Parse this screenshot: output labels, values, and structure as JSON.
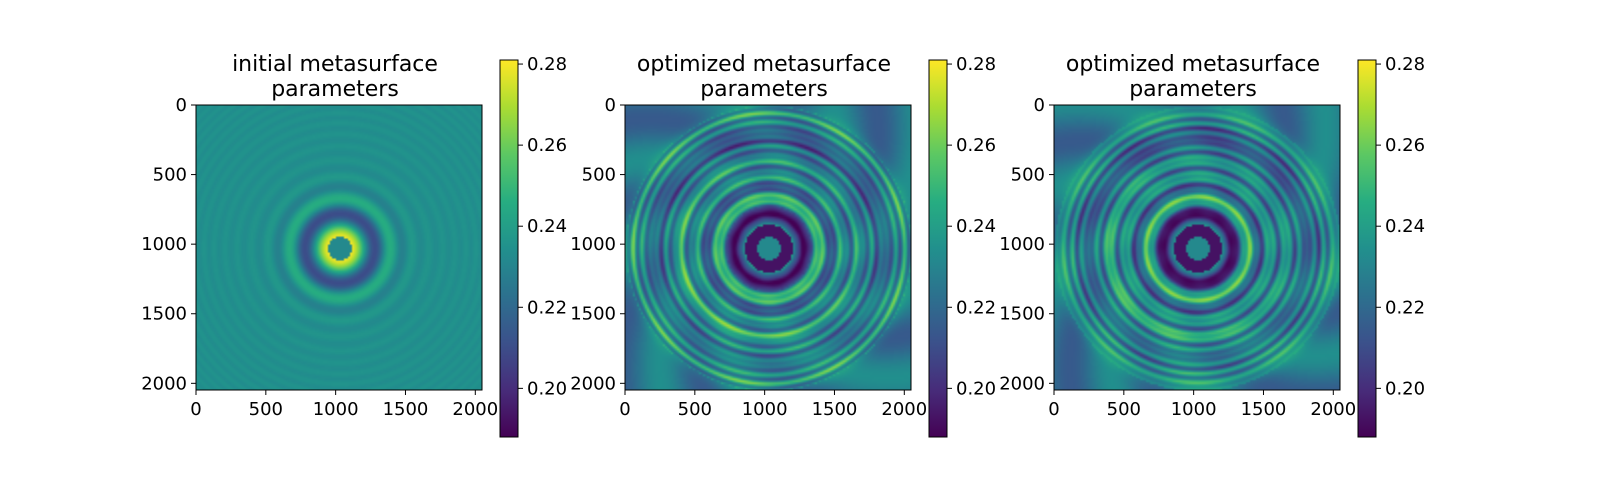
{
  "chart_data": [
    {
      "type": "heatmap",
      "title": "initial metasurface\nparameters",
      "state": "initial",
      "xlim": [
        0,
        2048
      ],
      "ylim": [
        2048,
        0
      ],
      "xticks": [
        0,
        500,
        1000,
        1500,
        2000
      ],
      "yticks": [
        0,
        500,
        1000,
        1500,
        2000
      ],
      "colorbar": {
        "vmin": 0.188,
        "vmax": 0.281,
        "ticks": [
          0.2,
          0.22,
          0.24,
          0.26,
          0.28
        ],
        "colormap": "viridis"
      }
    },
    {
      "type": "heatmap",
      "title": "optimized metasurface\nparameters",
      "state": "optimized",
      "xlim": [
        0,
        2048
      ],
      "ylim": [
        2048,
        0
      ],
      "xticks": [
        0,
        500,
        1000,
        1500,
        2000
      ],
      "yticks": [
        0,
        500,
        1000,
        1500,
        2000
      ],
      "colorbar": {
        "vmin": 0.188,
        "vmax": 0.281,
        "ticks": [
          0.2,
          0.22,
          0.24,
          0.26,
          0.28
        ],
        "colormap": "viridis"
      }
    },
    {
      "type": "heatmap",
      "title": "optimized metasurface\nparameters",
      "state": "optimized",
      "xlim": [
        0,
        2048
      ],
      "ylim": [
        2048,
        0
      ],
      "xticks": [
        0,
        500,
        1000,
        1500,
        2000
      ],
      "yticks": [
        0,
        500,
        1000,
        1500,
        2000
      ],
      "colorbar": {
        "vmin": 0.188,
        "vmax": 0.281,
        "ticks": [
          0.2,
          0.22,
          0.24,
          0.26,
          0.28
        ],
        "colormap": "viridis"
      }
    }
  ]
}
